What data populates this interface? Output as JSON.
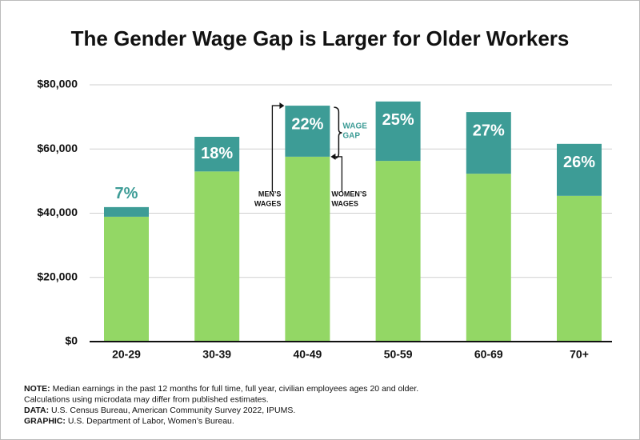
{
  "chart_data": {
    "type": "stacked_bar",
    "title": "The Gender Wage Gap is Larger for Older Workers",
    "categories": [
      "20-29",
      "30-39",
      "40-49",
      "50-59",
      "60-69",
      "70+"
    ],
    "series": [
      {
        "color": "#93d765",
        "values": [
          38900,
          53000,
          57600,
          56300,
          52300,
          45400
        ]
      },
      {
        "color": "#3d9c96",
        "values": [
          3000,
          10800,
          15900,
          18500,
          19200,
          16200
        ]
      }
    ],
    "gap_labels": [
      "7%",
      "18%",
      "22%",
      "25%",
      "27%",
      "26%"
    ],
    "ylim": [
      0,
      80000
    ],
    "yticks": [
      {
        "value": 0,
        "label": "$0"
      },
      {
        "value": 20000,
        "label": "$20,000"
      },
      {
        "value": 40000,
        "label": "$40,000"
      },
      {
        "value": 60000,
        "label": "$60,000"
      },
      {
        "value": 80000,
        "label": "$80,000"
      }
    ],
    "grid": true,
    "annotations": {
      "wage_gap": [
        "WAGE",
        "GAP"
      ],
      "mens_wages": [
        "MEN’S",
        "WAGES"
      ],
      "womens_wages": [
        "WOMEN’S",
        "WAGES"
      ]
    }
  },
  "footnotes": [
    {
      "label": "NOTE:",
      "text": "Median earnings in the past 12 months for full time, full year, civilian employees ages 20 and older."
    },
    {
      "text": "Calculations using microdata may differ from published estimates."
    },
    {
      "label": "DATA:",
      "text": "U.S. Census Bureau, American Community Survey 2022, IPUMS."
    },
    {
      "label": "GRAPHIC:",
      "text": "U.S. Department of Labor, Women’s Bureau."
    }
  ]
}
